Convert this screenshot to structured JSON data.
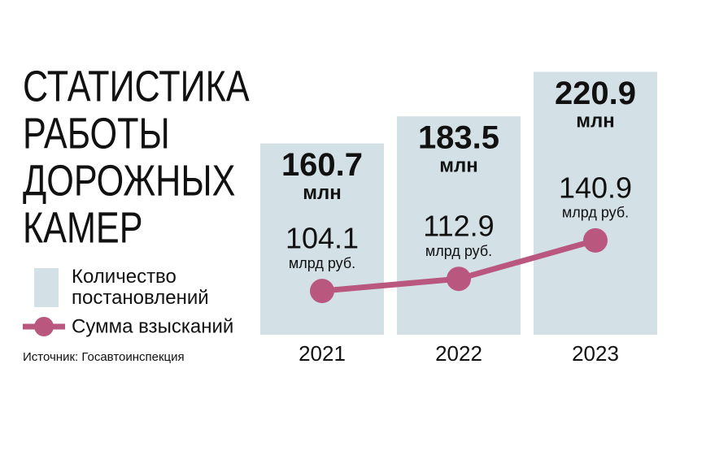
{
  "chart_data": {
    "type": "combo",
    "title": [
      "СТАТИСТИКА",
      "РАБОТЫ",
      "ДОРОЖНЫХ",
      "КАМЕР"
    ],
    "categories": [
      "2021",
      "2022",
      "2023"
    ],
    "series": [
      {
        "name": "Количество постановлений",
        "type": "bar",
        "color": "#d3e1e6",
        "values": [
          160.7,
          183.5,
          220.9
        ],
        "unit": "млн"
      },
      {
        "name": "Сумма взысканий",
        "type": "line",
        "color": "#b9577f",
        "values": [
          104.1,
          112.9,
          140.9
        ],
        "unit": "млрд руб.",
        "axis": "y2"
      }
    ],
    "source": "Источник: Госавтоинспекция"
  }
}
